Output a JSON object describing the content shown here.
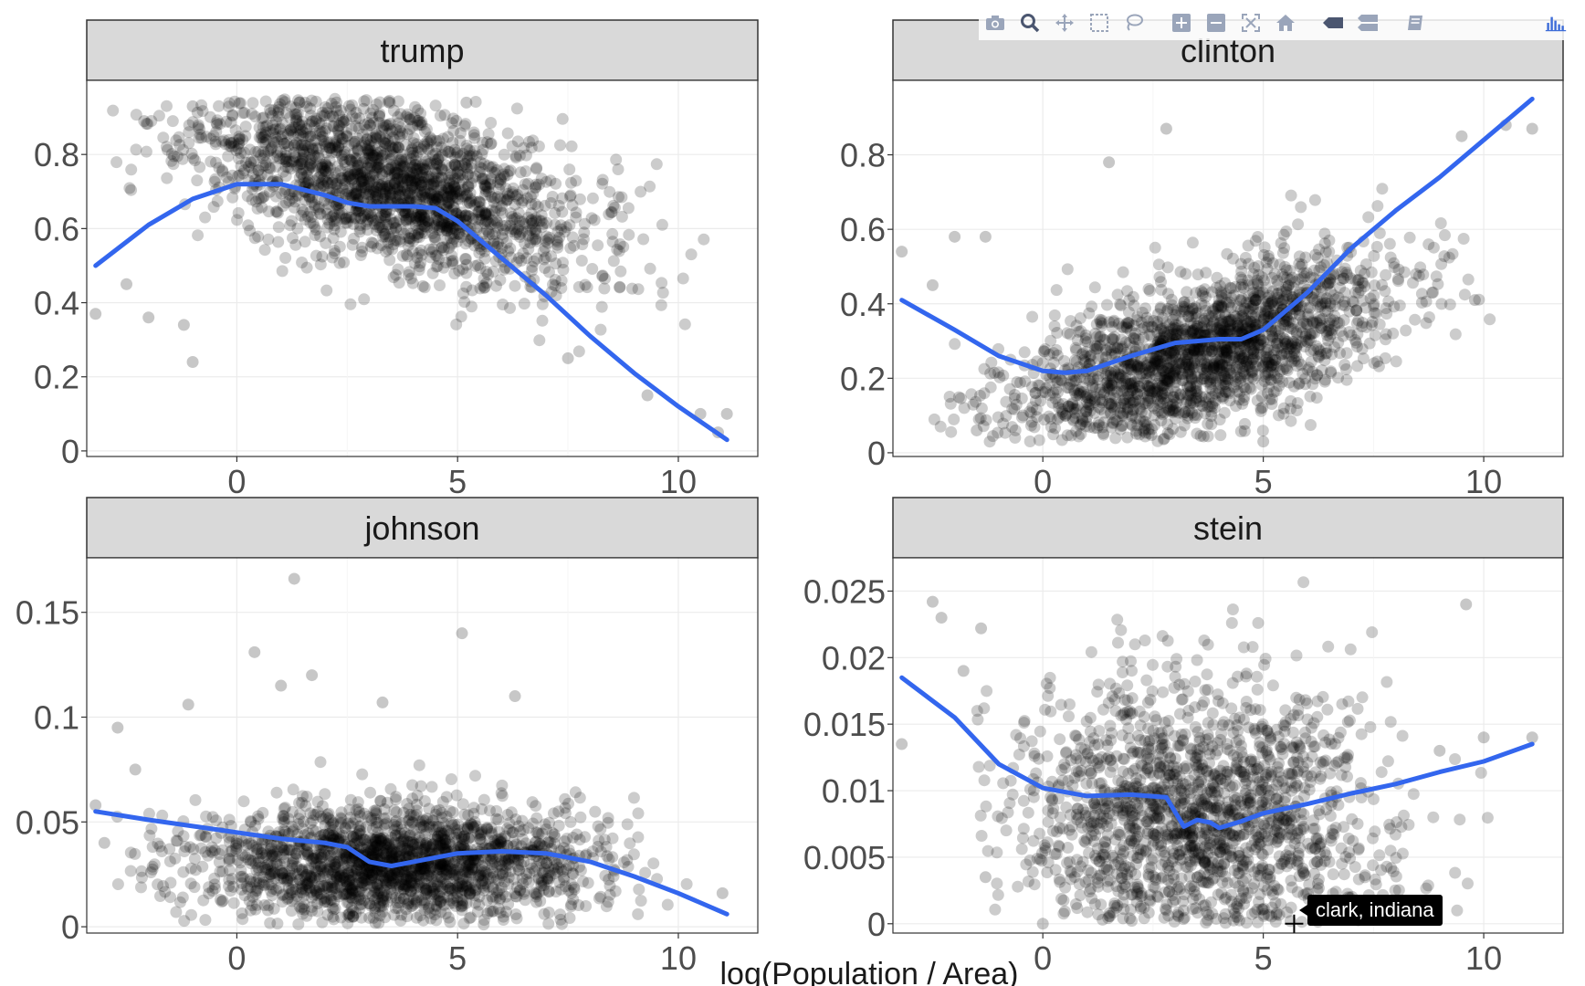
{
  "chart_data": {
    "type": "scatter",
    "xlabel": "log(Population / Area)",
    "ylabel": "",
    "smooth_color": "#3366EE",
    "point_color": "#000000",
    "strip_color": "#D9D9D9",
    "grid": true,
    "panels": [
      {
        "title": "trump",
        "xlim": [
          -3.4,
          11.8
        ],
        "ylim": [
          -0.015,
          1.0
        ],
        "xticks": [
          "0",
          "5",
          "10"
        ],
        "xtick_values": [
          0,
          5,
          10
        ],
        "yticks": [
          "0",
          "0.2",
          "0.4",
          "0.6",
          "0.8"
        ],
        "ytick_values": [
          0,
          0.2,
          0.4,
          0.6,
          0.8
        ],
        "smooth": {
          "x": [
            -3.2,
            -2,
            -1,
            0,
            1,
            2,
            2.5,
            3,
            4,
            4.5,
            5,
            6,
            7,
            8,
            9,
            10,
            11.1
          ],
          "y": [
            0.5,
            0.61,
            0.68,
            0.72,
            0.72,
            0.69,
            0.67,
            0.66,
            0.66,
            0.655,
            0.62,
            0.52,
            0.42,
            0.31,
            0.21,
            0.12,
            0.03
          ]
        },
        "cloud": {
          "cx": 3.5,
          "cy": 0.72,
          "sx": 2.2,
          "sy": 0.11,
          "tilt": -0.03,
          "n": 2000,
          "ymin": 0.08,
          "ymax": 0.95,
          "xmin": -3.2,
          "xmax": 11.0,
          "seed": 11
        },
        "outliers": [
          [
            -3.2,
            0.37
          ],
          [
            -2.5,
            0.45
          ],
          [
            -2.0,
            0.36
          ],
          [
            -1.2,
            0.34
          ],
          [
            -1.0,
            0.24
          ],
          [
            9.3,
            0.15
          ],
          [
            10.5,
            0.1
          ],
          [
            11.1,
            0.1
          ],
          [
            10.9,
            0.05
          ],
          [
            7.5,
            0.25
          ],
          [
            -2.1,
            0.89
          ],
          [
            -1.0,
            0.93
          ],
          [
            5.2,
            0.94
          ]
        ]
      },
      {
        "title": "clinton",
        "xlim": [
          -3.4,
          11.8
        ],
        "ylim": [
          -0.01,
          1.0
        ],
        "xticks": [
          "0",
          "5",
          "10"
        ],
        "xtick_values": [
          0,
          5,
          10
        ],
        "yticks": [
          "0",
          "0.2",
          "0.4",
          "0.6",
          "0.8"
        ],
        "ytick_values": [
          0,
          0.2,
          0.4,
          0.6,
          0.8
        ],
        "smooth": {
          "x": [
            -3.2,
            -2,
            -1,
            0,
            0.5,
            1,
            2,
            3,
            4,
            4.5,
            5,
            6,
            7,
            8,
            9,
            10,
            11.1
          ],
          "y": [
            0.41,
            0.33,
            0.26,
            0.22,
            0.215,
            0.22,
            0.26,
            0.295,
            0.305,
            0.305,
            0.33,
            0.43,
            0.55,
            0.65,
            0.74,
            0.84,
            0.95
          ]
        },
        "cloud": {
          "cx": 3.5,
          "cy": 0.26,
          "sx": 2.2,
          "sy": 0.1,
          "tilt": 0.035,
          "n": 2000,
          "ymin": 0.03,
          "ymax": 0.9,
          "xmin": -3.2,
          "xmax": 11.0,
          "seed": 23
        },
        "outliers": [
          [
            -3.2,
            0.54
          ],
          [
            -2.5,
            0.45
          ],
          [
            -2.0,
            0.58
          ],
          [
            -1.3,
            0.58
          ],
          [
            -1.5,
            0.06
          ],
          [
            9.5,
            0.85
          ],
          [
            10.5,
            0.88
          ],
          [
            11.1,
            0.87
          ],
          [
            9.8,
            0.41
          ],
          [
            5.0,
            0.03
          ],
          [
            1.5,
            0.78
          ],
          [
            2.8,
            0.87
          ]
        ]
      },
      {
        "title": "johnson",
        "xlim": [
          -3.4,
          11.8
        ],
        "ylim": [
          -0.003,
          0.176
        ],
        "xticks": [
          "0",
          "5",
          "10"
        ],
        "xtick_values": [
          0,
          5,
          10
        ],
        "yticks": [
          "0",
          "0.05",
          "0.1",
          "0.15"
        ],
        "ytick_values": [
          0,
          0.05,
          0.1,
          0.15
        ],
        "smooth": {
          "x": [
            -3.2,
            -2,
            -1,
            0,
            1,
            2,
            2.5,
            3,
            3.5,
            4,
            5,
            6,
            7,
            8,
            9,
            10,
            11.1
          ],
          "y": [
            0.055,
            0.051,
            0.048,
            0.045,
            0.042,
            0.04,
            0.038,
            0.031,
            0.029,
            0.031,
            0.035,
            0.036,
            0.035,
            0.031,
            0.024,
            0.016,
            0.006
          ]
        },
        "cloud": {
          "cx": 3.5,
          "cy": 0.03,
          "sx": 2.2,
          "sy": 0.014,
          "tilt": 0.0,
          "n": 2000,
          "ymin": 0.001,
          "ymax": 0.1,
          "xmin": -3.0,
          "xmax": 10.9,
          "seed": 37
        },
        "outliers": [
          [
            -2.7,
            0.095
          ],
          [
            -1.1,
            0.106
          ],
          [
            0.4,
            0.131
          ],
          [
            1.3,
            0.166
          ],
          [
            1.0,
            0.115
          ],
          [
            1.7,
            0.12
          ],
          [
            5.1,
            0.14
          ],
          [
            6.3,
            0.11
          ],
          [
            -3.2,
            0.058
          ],
          [
            -2.3,
            0.075
          ],
          [
            3.3,
            0.107
          ],
          [
            11.0,
            0.016
          ],
          [
            -3.0,
            0.04
          ]
        ]
      },
      {
        "title": "stein",
        "xlim": [
          -3.4,
          11.8
        ],
        "ylim": [
          -0.0007,
          0.0275
        ],
        "xticks": [
          "0",
          "5",
          "10"
        ],
        "xtick_values": [
          0,
          5,
          10
        ],
        "yticks": [
          "0",
          "0.005",
          "0.01",
          "0.015",
          "0.02",
          "0.025"
        ],
        "ytick_values": [
          0,
          0.005,
          0.01,
          0.015,
          0.02,
          0.025
        ],
        "smooth": {
          "x": [
            -3.2,
            -2,
            -1,
            0,
            1,
            2,
            2.8,
            3.2,
            3.5,
            3.8,
            4.0,
            4.5,
            5,
            6,
            7,
            8,
            9,
            10,
            11.1
          ],
          "y": [
            0.0185,
            0.0155,
            0.012,
            0.0102,
            0.0096,
            0.0097,
            0.0095,
            0.0073,
            0.0078,
            0.0076,
            0.0072,
            0.0077,
            0.0083,
            0.009,
            0.0098,
            0.0105,
            0.0114,
            0.0122,
            0.0135
          ]
        },
        "cloud": {
          "cx": 3.6,
          "cy": 0.0075,
          "sx": 2.1,
          "sy": 0.0055,
          "tilt": 0.0,
          "n": 1800,
          "ymin": 0.0,
          "ymax": 0.027,
          "xmin": -1.5,
          "xmax": 10.5,
          "seed": 53
        },
        "outliers": [
          [
            -3.2,
            0.0135
          ],
          [
            -2.5,
            0.0242
          ],
          [
            -2.3,
            0.023
          ],
          [
            -1.4,
            0.0222
          ],
          [
            -1.8,
            0.019
          ],
          [
            9.6,
            0.024
          ],
          [
            10.0,
            0.014
          ],
          [
            11.1,
            0.014
          ],
          [
            9.0,
            0.013
          ],
          [
            -1.3,
            0.0035
          ],
          [
            0.0,
            0.0
          ]
        ]
      }
    ],
    "hover": {
      "label": "clark, indiana",
      "x": 5.7,
      "y": 0.0
    }
  },
  "modebar": {
    "icons": [
      "camera-icon",
      "zoom-icon",
      "pan-icon",
      "box-select-icon",
      "lasso-select-icon",
      "zoom-in-icon",
      "zoom-out-icon",
      "autoscale-icon",
      "reset-axes-icon",
      "hover-closest-icon",
      "hover-compare-icon",
      "toggle-spikelines-icon",
      "plotly-logo-icon"
    ],
    "color": "#9AA5BA",
    "logo_color": "#3D6CD8"
  }
}
